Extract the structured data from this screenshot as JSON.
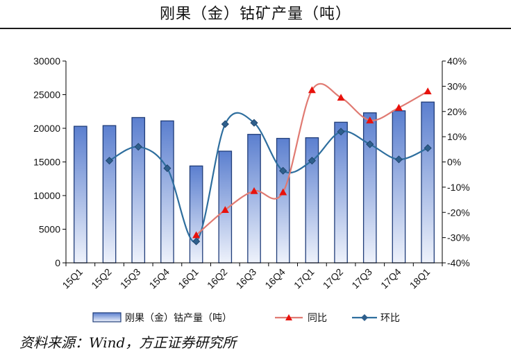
{
  "header": {
    "title": "刚果（金）钴矿产量（吨）"
  },
  "source": "资料来源：Wind，方正证券研究所",
  "colors": {
    "bar_fill_top": "#5b7fcf",
    "bar_fill_bottom": "#eef2fb",
    "bar_stroke": "#1f3c78",
    "yoy_line": "#e07a72",
    "yoy_marker": "#e8120c",
    "qoq_line": "#2e6e9e",
    "qoq_marker": "#2e5f8c",
    "axis": "#000000"
  },
  "chart_data": {
    "type": "bar",
    "title": "刚果（金）钴矿产量（吨）",
    "categories": [
      "15Q1",
      "15Q2",
      "15Q3",
      "15Q4",
      "16Q1",
      "16Q2",
      "16Q3",
      "16Q4",
      "17Q1",
      "17Q2",
      "17Q3",
      "17Q4",
      "18Q1"
    ],
    "left_axis": {
      "ylim": [
        0,
        30000
      ],
      "ticks": [
        "0",
        "5000",
        "10000",
        "15000",
        "20000",
        "25000",
        "30000"
      ]
    },
    "right_axis": {
      "ylim": [
        -40,
        40
      ],
      "ticks": [
        "-40%",
        "-30%",
        "-20%",
        "-10%",
        "0%",
        "10%",
        "20%",
        "30%",
        "40%"
      ]
    },
    "series": [
      {
        "name": "刚果（金）钴产量（吨）",
        "type": "bar",
        "axis": "left",
        "values": [
          20300,
          20400,
          21600,
          21100,
          14400,
          16600,
          19100,
          18500,
          18600,
          20900,
          22300,
          22600,
          23900
        ]
      },
      {
        "name": "同比",
        "type": "line",
        "axis": "right",
        "marker": "triangle",
        "values": [
          null,
          null,
          null,
          null,
          -29,
          -19,
          -11.5,
          -12,
          28.5,
          25.5,
          16.5,
          21.5,
          28
        ]
      },
      {
        "name": "环比",
        "type": "line",
        "axis": "right",
        "marker": "diamond",
        "values": [
          null,
          0.5,
          6,
          -2.5,
          -31.5,
          15,
          15.5,
          -3.5,
          0.5,
          12,
          7,
          1,
          5.5
        ]
      }
    ],
    "legend": {
      "position": "bottom",
      "entries": [
        "刚果（金）钴产量（吨）",
        "同比",
        "环比"
      ]
    },
    "grid": false
  }
}
